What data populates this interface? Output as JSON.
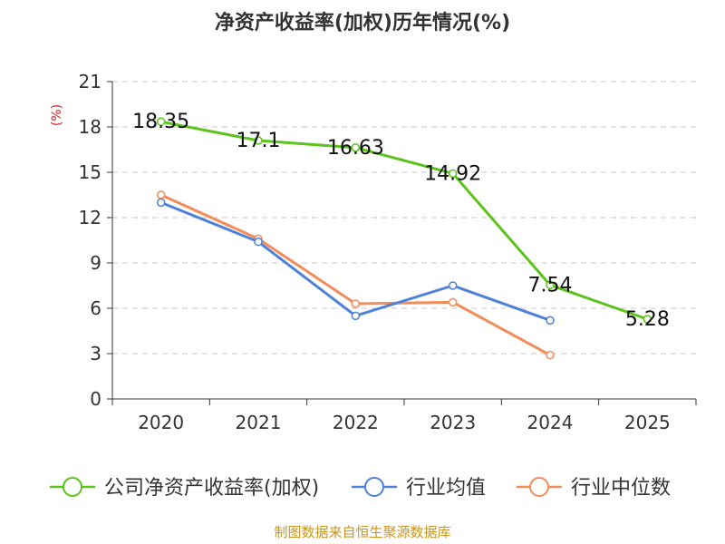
{
  "chart_data": {
    "type": "line",
    "title": "净资产收益率(加权)历年情况(%)",
    "ylabel": "(%)",
    "xlabel": "",
    "categories": [
      "2020",
      "2021",
      "2022",
      "2023",
      "2024",
      "2025"
    ],
    "ylim": [
      0,
      21
    ],
    "yticks": [
      0,
      3,
      6,
      9,
      12,
      15,
      18,
      21
    ],
    "grid": true,
    "legend_position": "bottom",
    "series": [
      {
        "name": "公司净资产收益率(加权)",
        "color": "#5cc21c",
        "values": [
          18.35,
          17.1,
          16.63,
          14.92,
          7.54,
          5.28
        ],
        "labels": [
          "18.35",
          "17.1",
          "16.63",
          "14.92",
          "7.54",
          "5.28"
        ]
      },
      {
        "name": "行业均值",
        "color": "#4f81d8",
        "values": [
          13.0,
          10.4,
          5.5,
          7.5,
          5.2,
          null
        ]
      },
      {
        "name": "行业中位数",
        "color": "#f28d5a",
        "values": [
          13.5,
          10.6,
          6.3,
          6.4,
          2.9,
          null
        ]
      }
    ]
  },
  "source": "制图数据来自恒生聚源数据库"
}
